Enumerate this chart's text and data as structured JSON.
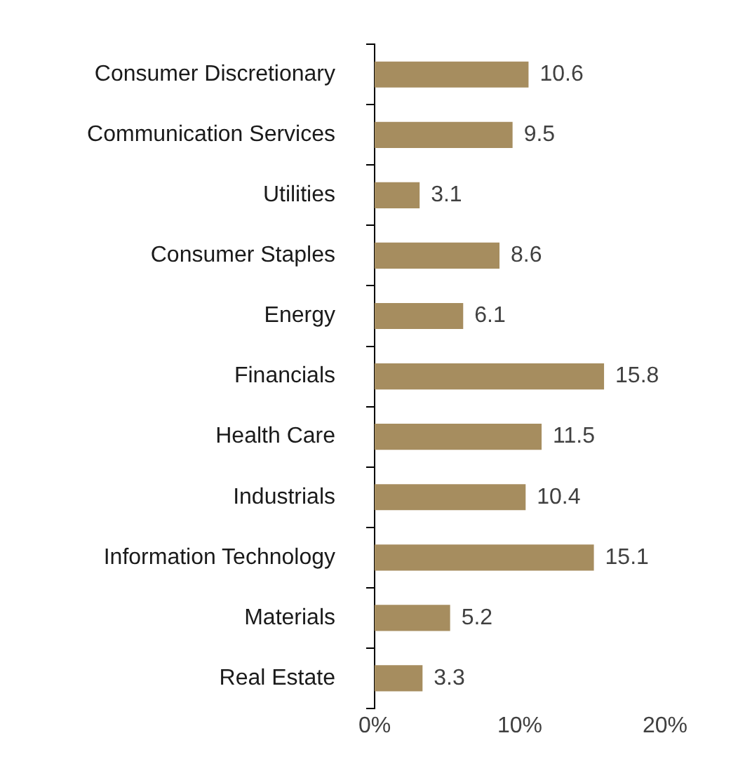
{
  "chart_data": {
    "type": "bar",
    "orientation": "horizontal",
    "categories": [
      "Consumer Discretionary",
      "Communication Services",
      "Utilities",
      "Consumer Staples",
      "Energy",
      "Financials",
      "Health Care",
      "Industrials",
      "Information Technology",
      "Materials",
      "Real Estate"
    ],
    "values": [
      10.6,
      9.5,
      3.1,
      8.6,
      6.1,
      15.8,
      11.5,
      10.4,
      15.1,
      5.2,
      3.3
    ],
    "color": "#a68d5f",
    "data_labels": true,
    "xlim": [
      0,
      20
    ],
    "xticks": [
      {
        "value": 0,
        "label": "0%"
      },
      {
        "value": 10,
        "label": "10%"
      },
      {
        "value": 20,
        "label": "20%"
      }
    ]
  }
}
